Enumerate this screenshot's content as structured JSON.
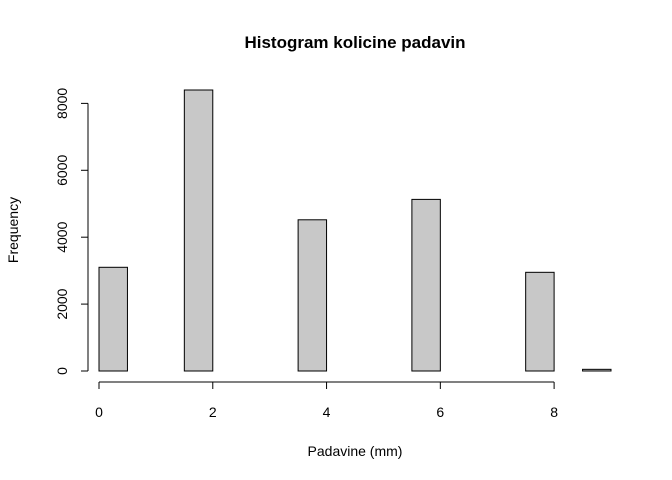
{
  "chart_data": {
    "type": "bar",
    "title": "Histogram kolicine padavin",
    "xlabel": "Padavine (mm)",
    "ylabel": "Frequency",
    "xlim": [
      0,
      9
    ],
    "ylim": [
      0,
      8400
    ],
    "x_ticks": [
      0,
      2,
      4,
      6,
      8
    ],
    "y_ticks": [
      0,
      2000,
      4000,
      6000,
      8000
    ],
    "bar_color": "#c8c8c8",
    "bins": [
      {
        "start": 0.0,
        "end": 0.5,
        "count": 3100
      },
      {
        "start": 0.5,
        "end": 1.0,
        "count": 0
      },
      {
        "start": 1.0,
        "end": 1.5,
        "count": 0
      },
      {
        "start": 1.5,
        "end": 2.0,
        "count": 8400
      },
      {
        "start": 2.0,
        "end": 2.5,
        "count": 0
      },
      {
        "start": 2.5,
        "end": 3.0,
        "count": 0
      },
      {
        "start": 3.0,
        "end": 3.5,
        "count": 0
      },
      {
        "start": 3.5,
        "end": 4.0,
        "count": 4520
      },
      {
        "start": 4.0,
        "end": 4.5,
        "count": 0
      },
      {
        "start": 4.5,
        "end": 5.0,
        "count": 0
      },
      {
        "start": 5.0,
        "end": 5.5,
        "count": 0
      },
      {
        "start": 5.5,
        "end": 6.0,
        "count": 5130
      },
      {
        "start": 6.0,
        "end": 6.5,
        "count": 0
      },
      {
        "start": 6.5,
        "end": 7.0,
        "count": 0
      },
      {
        "start": 7.0,
        "end": 7.5,
        "count": 0
      },
      {
        "start": 7.5,
        "end": 8.0,
        "count": 2950
      },
      {
        "start": 8.0,
        "end": 8.5,
        "count": 0
      },
      {
        "start": 8.5,
        "end": 9.0,
        "count": 50
      }
    ]
  }
}
